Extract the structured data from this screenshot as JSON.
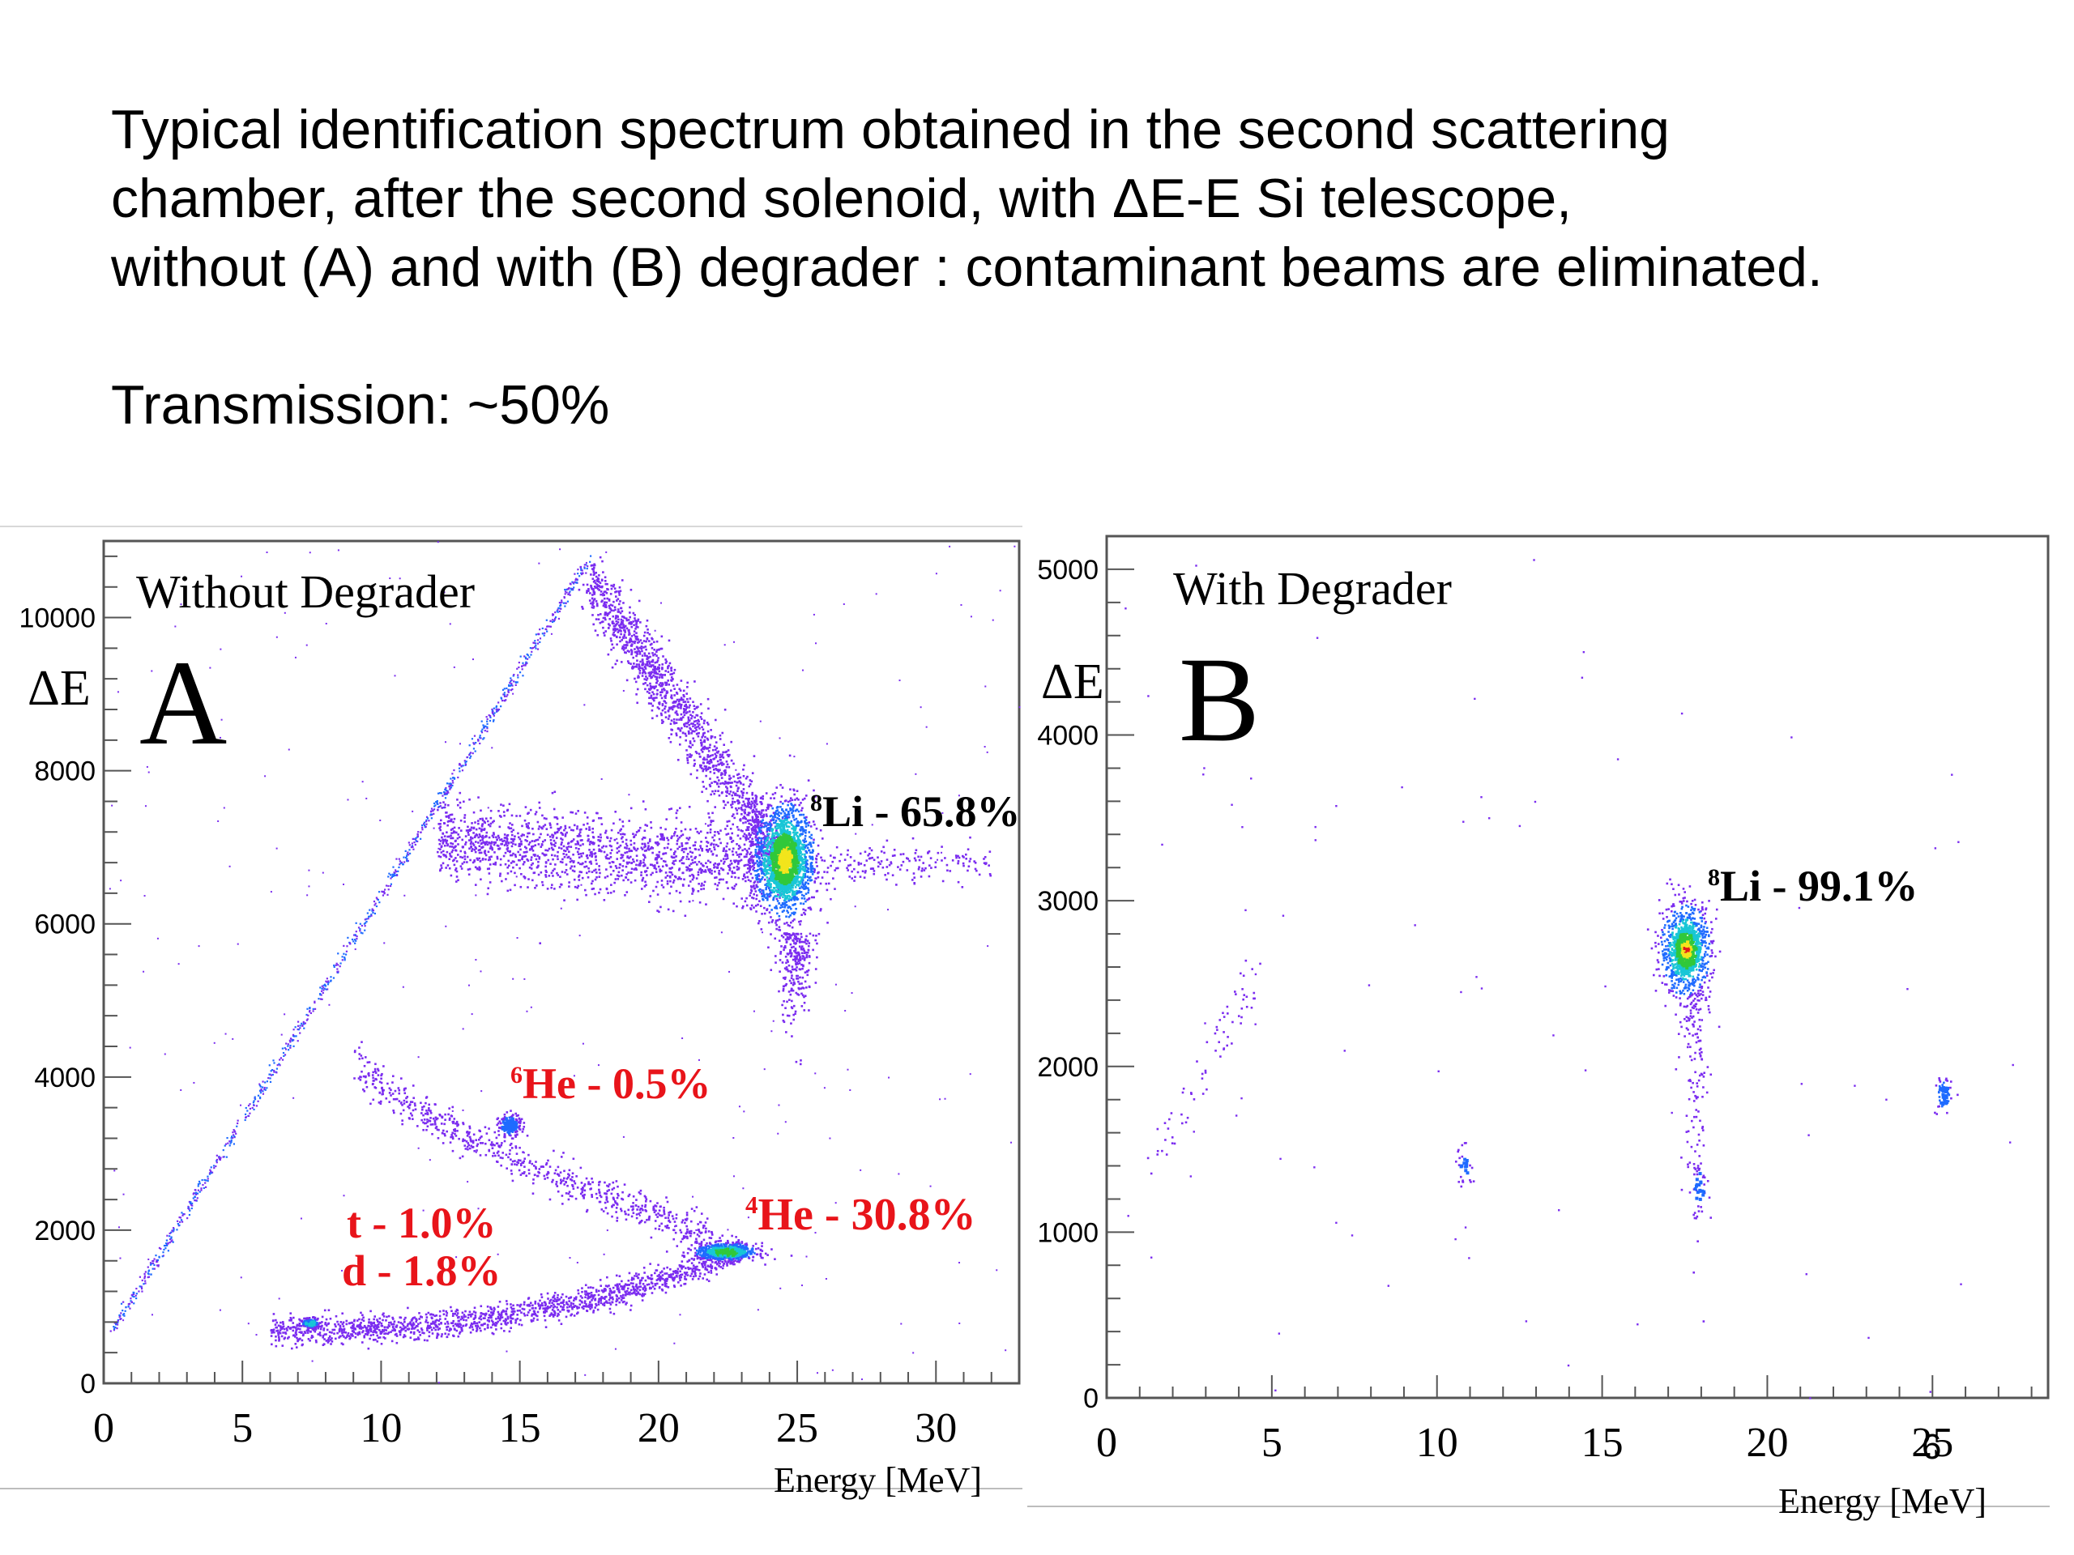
{
  "caption": {
    "line1": "Typical identification spectrum obtained  in the second scattering",
    "line2": "chamber, after the second solenoid, with ΔE-E Si telescope,",
    "line3": "without (A) and with (B) degrader : contaminant beams are eliminated."
  },
  "transmission": "Transmission: ~50%",
  "page_number": "6",
  "colors": {
    "low_density": "#7b2cf0",
    "mid_density": "#1f6bff",
    "cyan": "#19c6d6",
    "green": "#31c83a",
    "yellow": "#f2e51c",
    "red": "#e11a1a",
    "annotation_red": "#e8141a"
  },
  "chart_data": [
    {
      "type": "scatter",
      "panel_label": "A",
      "title": "Without Degrader",
      "xlabel": "Energy [MeV]",
      "ylabel": "ΔE",
      "xlim": [
        0,
        33
      ],
      "ylim": [
        0,
        11000
      ],
      "xticks": [
        "0",
        "5",
        "10",
        "15",
        "20",
        "25",
        "30"
      ],
      "yticks": [
        "0",
        "2000",
        "4000",
        "6000",
        "8000",
        "10000"
      ],
      "clusters": [
        {
          "label": "8Li - 65.8%",
          "sup": "8",
          "name": "Li - 65.8%",
          "x": 24.5,
          "y": 6800,
          "color": "black"
        },
        {
          "label": "4He - 30.8%",
          "sup": "4",
          "name": "He - 30.8%",
          "x": 22.4,
          "y": 1730,
          "color": "red"
        },
        {
          "label": "6He - 0.5%",
          "sup": "6",
          "name": "He - 0.5%",
          "x": 14.7,
          "y": 3380,
          "color": "red"
        },
        {
          "label": "t - 1.0%",
          "sup": "",
          "name": "t - 1.0%",
          "x": 7.4,
          "y": 800,
          "color": "red"
        },
        {
          "label": "d - 1.8%",
          "sup": "",
          "name": "d - 1.8%",
          "x": 7.4,
          "y": 800,
          "color": "red"
        }
      ]
    },
    {
      "type": "scatter",
      "panel_label": "B",
      "title": "With Degrader",
      "xlabel": "Energy [MeV]",
      "ylabel": "ΔE",
      "xlim": [
        0,
        28.5
      ],
      "ylim": [
        0,
        5200
      ],
      "xticks": [
        "0",
        "5",
        "10",
        "15",
        "20",
        "25"
      ],
      "yticks": [
        "0",
        "1000",
        "2000",
        "3000",
        "4000",
        "5000"
      ],
      "clusters": [
        {
          "label": "8Li - 99.1%",
          "sup": "8",
          "name": "Li - 99.1%",
          "x": 17.5,
          "y": 2700,
          "color": "black"
        }
      ]
    }
  ]
}
